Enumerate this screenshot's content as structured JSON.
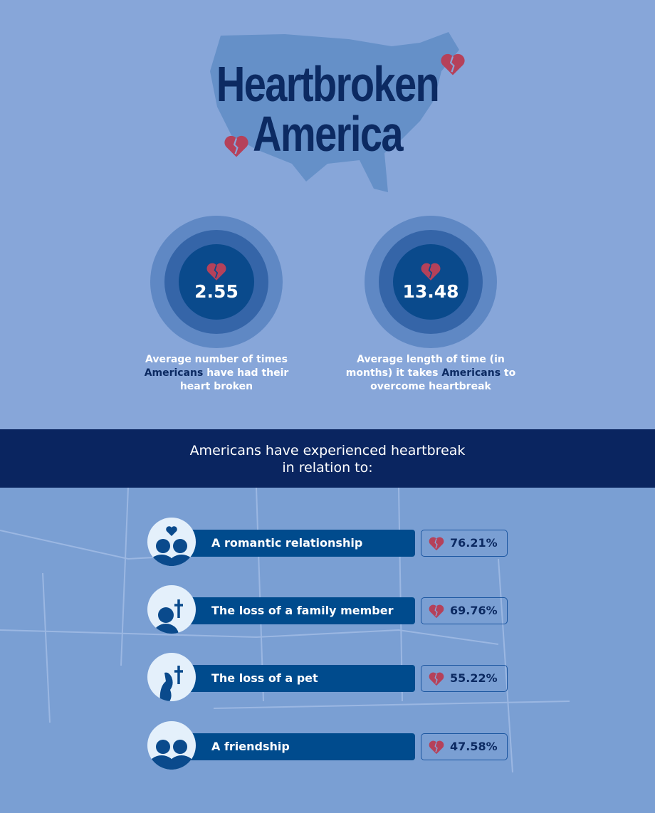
{
  "title": {
    "line1": "Heartbroken",
    "line2": "America"
  },
  "stats": [
    {
      "value": "2.55",
      "caption_pre": "Average number of times ",
      "caption_bold": "Americans",
      "caption_post": " have had their heart broken"
    },
    {
      "value": "13.48",
      "caption_pre": "Average length of time (in months) it takes ",
      "caption_bold": "Americans",
      "caption_post": " to overcome heartbreak"
    }
  ],
  "banner": {
    "line1": "Americans have experienced heartbreak",
    "line2": "in relation to:"
  },
  "items": [
    {
      "label": "A romantic relationship",
      "percent": "76.21%",
      "icon": "couple-heart-icon"
    },
    {
      "label": "The loss of a family member",
      "percent": "69.76%",
      "icon": "person-cross-icon"
    },
    {
      "label": "The loss of a pet",
      "percent": "55.22%",
      "icon": "dog-cross-icon"
    },
    {
      "label": "A friendship",
      "percent": "47.58%",
      "icon": "two-people-icon"
    }
  ],
  "colors": {
    "background": "#87a6d9",
    "title": "#0c2a62",
    "bar": "#004b8d",
    "heart": "#b5415a",
    "banner": "#0a2560"
  }
}
